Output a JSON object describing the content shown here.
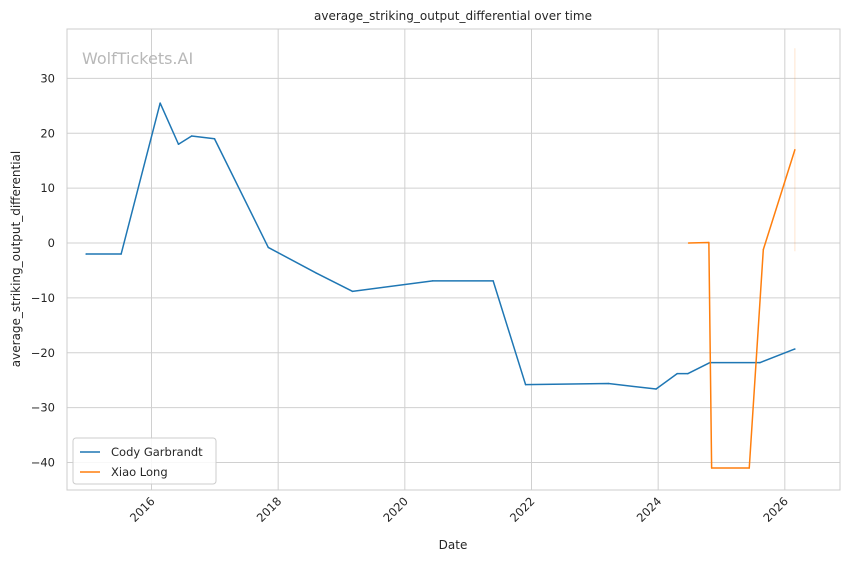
{
  "chart_data": {
    "type": "line",
    "title": "average_striking_output_differential over time",
    "xlabel": "Date",
    "ylabel": "average_striking_output_differential",
    "watermark": "WolfTickets.AI",
    "x_ticks": [
      "2016",
      "2018",
      "2020",
      "2022",
      "2024",
      "2026"
    ],
    "y_ticks": [
      30,
      20,
      10,
      0,
      -10,
      -20,
      -30,
      -40
    ],
    "xlim": [
      "2014-09-01",
      "2026-11-15"
    ],
    "ylim": [
      -45,
      39
    ],
    "grid": true,
    "legend_position": "lower-left",
    "series": [
      {
        "name": "Cody Garbrandt",
        "color": "#1f77b4",
        "points": [
          [
            "2014-12-20",
            -2
          ],
          [
            "2015-07-10",
            -2
          ],
          [
            "2016-02-20",
            25.5
          ],
          [
            "2016-06-05",
            18
          ],
          [
            "2016-08-20",
            19.5
          ],
          [
            "2016-12-30",
            19
          ],
          [
            "2017-11-05",
            -0.8
          ],
          [
            "2018-08-10",
            -5.5
          ],
          [
            "2019-03-05",
            -8.8
          ],
          [
            "2020-06-10",
            -6.9
          ],
          [
            "2021-05-25",
            -6.9
          ],
          [
            "2021-11-28",
            -25.8
          ],
          [
            "2023-03-20",
            -25.6
          ],
          [
            "2023-12-20",
            -26.6
          ],
          [
            "2024-04-20",
            -23.8
          ],
          [
            "2024-06-20",
            -23.8
          ],
          [
            "2024-10-25",
            -21.8
          ],
          [
            "2025-08-10",
            -21.8
          ],
          [
            "2026-02-28",
            -19.3
          ]
        ]
      },
      {
        "name": "Xiao Long",
        "color": "#ff7f0e",
        "points": [
          [
            "2024-06-25",
            0
          ],
          [
            "2024-10-20",
            0.1
          ],
          [
            "2024-11-05",
            -41
          ],
          [
            "2025-06-10",
            -41
          ],
          [
            "2025-08-30",
            -1.2
          ],
          [
            "2026-02-28",
            17
          ]
        ],
        "error_band": {
          "x": "2026-02-28",
          "low": -1.5,
          "high": 35.5
        }
      }
    ]
  }
}
